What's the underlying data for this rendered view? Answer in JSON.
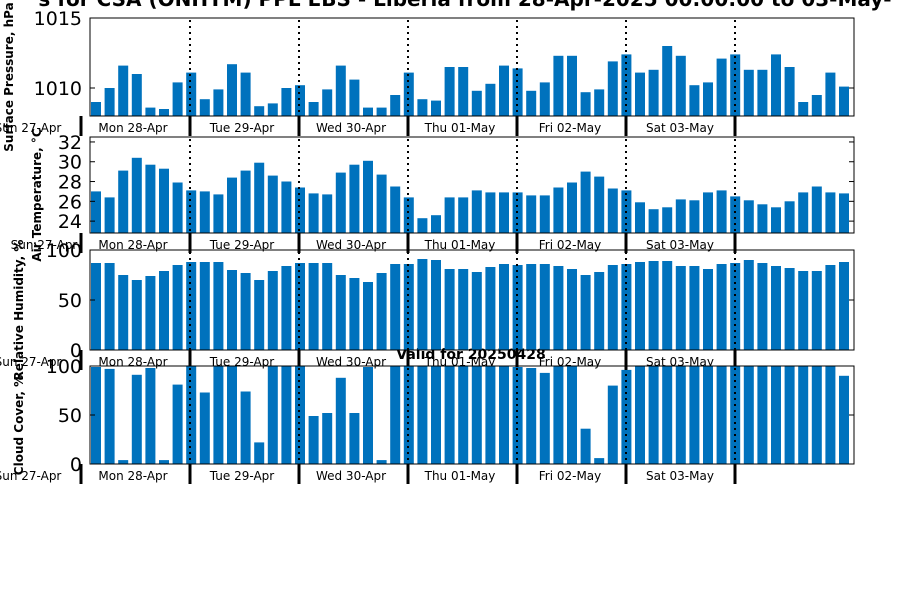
{
  "title": "s for CSA (ONHYM) PPL EBS  - Liberia from 28-Apr-2025 00:00:00 to 03-May-",
  "valid_label": "Valid for 20250428",
  "colors": {
    "bar": "#0072BD",
    "axis": "#000000",
    "divider": "#000000"
  },
  "chart_data": [
    {
      "type": "bar",
      "ylabel": "Surface Pressure, hPa",
      "ylim": [
        1008,
        1015
      ],
      "yticks": [
        1010,
        1015
      ],
      "x_tick_labels": [
        "Sun 27-Apr",
        "Mon 28-Apr",
        "Tue 29-Apr",
        "Wed 30-Apr",
        "Thu 01-May",
        "Fri 02-May",
        "Sat 03-May"
      ],
      "values": [
        1009.0,
        1010.0,
        1011.6,
        1011.0,
        1008.6,
        1008.5,
        1010.4,
        1011.1,
        1009.2,
        1009.9,
        1011.7,
        1011.1,
        1008.7,
        1008.9,
        1010.0,
        1010.2,
        1009.0,
        1009.9,
        1011.6,
        1010.6,
        1008.6,
        1008.6,
        1009.5,
        1011.1,
        1009.2,
        1009.1,
        1011.5,
        1011.5,
        1009.8,
        1010.3,
        1011.6,
        1011.4,
        1009.8,
        1010.4,
        1012.3,
        1012.3,
        1009.7,
        1009.9,
        1011.9,
        1012.4,
        1011.1,
        1011.3,
        1013.0,
        1012.3,
        1010.2,
        1010.4,
        1012.1,
        1012.4,
        1011.3,
        1011.3,
        1012.4,
        1011.5,
        1009.0,
        1009.5,
        1011.1,
        1010.1
      ]
    },
    {
      "type": "bar",
      "ylabel": "Air Temperature, °C",
      "ylim": [
        22.8,
        32.5
      ],
      "yticks": [
        24,
        26,
        28,
        30,
        32
      ],
      "x_tick_labels": [
        "Sun 27-Apr",
        "Mon 28-Apr",
        "Tue 29-Apr",
        "Wed 30-Apr",
        "Thu 01-May",
        "Fri 02-May",
        "Sat 03-May"
      ],
      "values": [
        27.0,
        26.4,
        29.1,
        30.4,
        29.7,
        29.3,
        27.9,
        27.1,
        27.0,
        26.7,
        28.4,
        29.1,
        29.9,
        28.6,
        28.0,
        27.4,
        26.8,
        26.7,
        28.9,
        29.7,
        30.1,
        28.7,
        27.5,
        26.4,
        24.3,
        24.6,
        26.4,
        26.4,
        27.1,
        26.9,
        26.9,
        26.9,
        26.6,
        26.6,
        27.4,
        27.9,
        29.0,
        28.5,
        27.3,
        27.1,
        25.9,
        25.2,
        25.4,
        26.2,
        26.1,
        26.9,
        27.1,
        26.5,
        26.1,
        25.7,
        25.4,
        26.0,
        26.9,
        27.5,
        26.9,
        26.8
      ]
    },
    {
      "type": "bar",
      "ylabel": "Relative Humidity, %",
      "ylim": [
        0,
        100
      ],
      "yticks": [
        0,
        50,
        100
      ],
      "x_tick_labels": [
        "Sun 27-Apr",
        "Mon 28-Apr",
        "Tue 29-Apr",
        "Wed 30-Apr",
        "Thu 01-May",
        "Fri 02-May",
        "Sat 03-May"
      ],
      "values": [
        87,
        87,
        75,
        70,
        74,
        79,
        85,
        88,
        88,
        88,
        80,
        77,
        70,
        79,
        84,
        87,
        87,
        87,
        75,
        72,
        68,
        77,
        86,
        86,
        91,
        90,
        81,
        81,
        78,
        83,
        86,
        85,
        86,
        86,
        84,
        81,
        75,
        78,
        85,
        86,
        88,
        89,
        89,
        84,
        84,
        81,
        86,
        87,
        90,
        87,
        84,
        82,
        79,
        79,
        85,
        88
      ]
    },
    {
      "type": "bar",
      "ylabel": "Cloud Cover, %",
      "ylim": [
        0,
        100
      ],
      "yticks": [
        0,
        50,
        100
      ],
      "x_tick_labels": [
        "Sun 27-Apr",
        "Mon 28-Apr",
        "Tue 29-Apr",
        "Wed 30-Apr",
        "Thu 01-May",
        "Fri 02-May",
        "Sat 03-May"
      ],
      "values": [
        99,
        97,
        4,
        91,
        98,
        4,
        81,
        100,
        73,
        100,
        100,
        74,
        22,
        100,
        100,
        100,
        49,
        52,
        88,
        52,
        99,
        4,
        100,
        100,
        100,
        100,
        100,
        100,
        100,
        100,
        100,
        99,
        98,
        93,
        100,
        100,
        36,
        6,
        80,
        96,
        100,
        100,
        100,
        100,
        100,
        100,
        100,
        100,
        100,
        100,
        100,
        100,
        100,
        100,
        100,
        90
      ]
    }
  ]
}
